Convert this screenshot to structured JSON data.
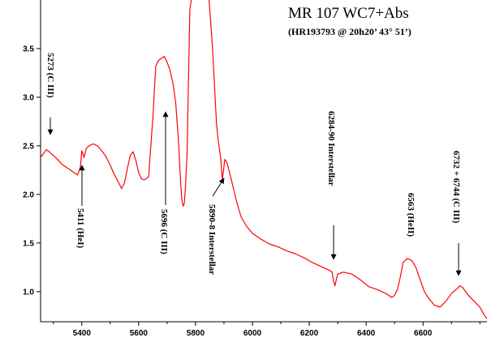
{
  "chart_data": {
    "type": "line",
    "title": "MR 107 WC7+Abs",
    "subtitle": "(HR193793 @ 20h20’ 43° 51’)",
    "xlabel": "",
    "ylabel": "",
    "xlim": [
      5255,
      6825
    ],
    "ylim": [
      0.69,
      4.0
    ],
    "x_ticks": [
      5400,
      5600,
      5800,
      6000,
      6200,
      6400,
      6600
    ],
    "y_ticks": [
      1.0,
      1.5,
      2.0,
      2.5,
      3.0,
      3.5
    ],
    "grid": false,
    "line_color": "#ff0000",
    "series": [
      {
        "name": "",
        "x": [
          5255,
          5265,
          5275,
          5285,
          5300,
          5315,
          5330,
          5345,
          5360,
          5375,
          5385,
          5395,
          5400,
          5408,
          5415,
          5425,
          5440,
          5455,
          5470,
          5485,
          5500,
          5515,
          5530,
          5540,
          5550,
          5560,
          5570,
          5580,
          5590,
          5600,
          5610,
          5620,
          5635,
          5650,
          5660,
          5670,
          5680,
          5690,
          5700,
          5710,
          5720,
          5730,
          5740,
          5748,
          5752,
          5756,
          5760,
          5764,
          5770,
          5780,
          5790,
          5800,
          5815,
          5830,
          5845,
          5860,
          5868,
          5874,
          5880,
          5888,
          5894,
          5898,
          5903,
          5910,
          5920,
          5930,
          5945,
          5960,
          5980,
          6000,
          6030,
          6060,
          6090,
          6120,
          6150,
          6180,
          6210,
          6240,
          6270,
          6280,
          6286,
          6290,
          6295,
          6300,
          6320,
          6350,
          6380,
          6410,
          6440,
          6470,
          6490,
          6500,
          6510,
          6520,
          6530,
          6545,
          6560,
          6575,
          6590,
          6605,
          6620,
          6640,
          6660,
          6680,
          6700,
          6720,
          6730,
          6740,
          6760,
          6780,
          6800,
          6815,
          6825
        ],
        "values": [
          2.38,
          2.42,
          2.46,
          2.44,
          2.4,
          2.36,
          2.31,
          2.28,
          2.25,
          2.22,
          2.2,
          2.28,
          2.45,
          2.38,
          2.47,
          2.5,
          2.52,
          2.5,
          2.45,
          2.39,
          2.3,
          2.2,
          2.12,
          2.06,
          2.12,
          2.26,
          2.4,
          2.44,
          2.35,
          2.22,
          2.16,
          2.15,
          2.18,
          2.8,
          3.32,
          3.38,
          3.4,
          3.42,
          3.36,
          3.28,
          3.15,
          2.95,
          2.55,
          2.1,
          1.94,
          1.88,
          1.9,
          2.05,
          2.4,
          3.9,
          4.1,
          4.1,
          4.1,
          4.1,
          4.1,
          3.5,
          3.05,
          2.72,
          2.55,
          2.38,
          2.15,
          2.24,
          2.36,
          2.33,
          2.22,
          2.1,
          1.92,
          1.77,
          1.67,
          1.6,
          1.54,
          1.49,
          1.46,
          1.42,
          1.39,
          1.35,
          1.3,
          1.26,
          1.22,
          1.2,
          1.1,
          1.06,
          1.12,
          1.18,
          1.2,
          1.18,
          1.12,
          1.05,
          1.02,
          0.98,
          0.94,
          0.96,
          1.02,
          1.15,
          1.3,
          1.34,
          1.32,
          1.25,
          1.12,
          1.0,
          0.93,
          0.86,
          0.84,
          0.9,
          0.98,
          1.03,
          1.06,
          1.04,
          0.96,
          0.9,
          0.84,
          0.76,
          0.72
        ]
      }
    ],
    "annotations": [
      {
        "label": "5273 (C III)",
        "x": 5273
      },
      {
        "label": "5411 (HeI)",
        "x": 5411
      },
      {
        "label": "5696 (C III)",
        "x": 5696
      },
      {
        "label": "5890-8 Interstellar",
        "x": 5894
      },
      {
        "label": "6284-90 Interstellar",
        "x": 6287
      },
      {
        "label": "6563 (HeII)",
        "x": 6563
      },
      {
        "label": "6732 + 6744 (C III)",
        "x": 6738
      }
    ]
  }
}
